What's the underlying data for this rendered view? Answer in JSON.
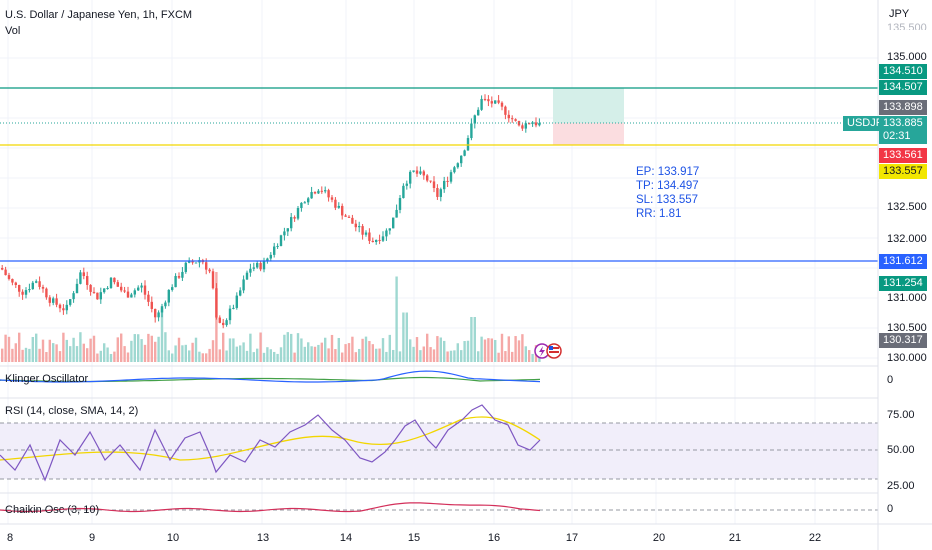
{
  "header": {
    "title": "U.S. Dollar / Japanese Yen, 1h, FXCM",
    "volume_label": "Vol"
  },
  "price_axis": {
    "currency": "JPY",
    "ticks": [
      "135.000",
      "132.500",
      "132.000",
      "131.000",
      "130.500",
      "130.000"
    ],
    "top_partial_tick": "135.500"
  },
  "trade_info": {
    "ep": "EP: 133.917",
    "tp": "TP: 134.497",
    "sl": "SL: 133.557",
    "rr": "RR: 1.81"
  },
  "price_tags": {
    "tp_high": "134.510",
    "tp_line": "134.507",
    "last_gray": "133.898",
    "symbol": "USDJPY",
    "current": "133.885",
    "countdown": "02:31",
    "red": "133.561",
    "sl": "133.557",
    "blue": "131.612",
    "green_low": "131.254",
    "low_gray": "130.317"
  },
  "indicators": {
    "klinger": {
      "label": "Klinger Oscillator",
      "tick": "0"
    },
    "rsi": {
      "label": "RSI (14, close, SMA, 14, 2)",
      "ticks": [
        "75.00",
        "50.00",
        "25.00"
      ]
    },
    "chaikin": {
      "label": "Chaikin Osc (3, 10)",
      "tick": "0"
    }
  },
  "time_axis": {
    "labels": [
      "8",
      "9",
      "10",
      "13",
      "14",
      "15",
      "16",
      "17",
      "20",
      "21",
      "22"
    ]
  },
  "colors": {
    "up": "#26a69a",
    "down": "#ef5350",
    "vol_up": "#9fd8d1",
    "vol_down": "#f5a8a6",
    "tp_line": "#089981",
    "sl_line": "#f2d600",
    "support_line": "#2962ff",
    "rsi_line": "#7e57c2",
    "rsi_ma": "#f2d600",
    "rsi_band": "#f1eefa",
    "klinger_main": "#2962ff",
    "klinger_signal": "#43a047",
    "chaikin": "#d32f5a"
  },
  "chart_data": {
    "type": "candlestick",
    "symbol": "USDJPY",
    "interval": "1h",
    "y_range": [
      130.0,
      135.5
    ],
    "levels": {
      "entry": 133.917,
      "take_profit": 134.497,
      "stop_loss": 133.557,
      "horizontal_line_1": 134.507,
      "horizontal_line_2": 131.612
    },
    "price_path": [
      {
        "x": 0,
        "p": 131.5
      },
      {
        "x": 10,
        "p": 131.25
      },
      {
        "x": 22,
        "p": 131.1
      },
      {
        "x": 35,
        "p": 131.3
      },
      {
        "x": 50,
        "p": 130.95
      },
      {
        "x": 65,
        "p": 130.8
      },
      {
        "x": 80,
        "p": 131.45
      },
      {
        "x": 95,
        "p": 131.0
      },
      {
        "x": 110,
        "p": 131.3
      },
      {
        "x": 125,
        "p": 131.05
      },
      {
        "x": 140,
        "p": 131.2
      },
      {
        "x": 155,
        "p": 130.65
      },
      {
        "x": 170,
        "p": 131.2
      },
      {
        "x": 185,
        "p": 131.55
      },
      {
        "x": 200,
        "p": 131.65
      },
      {
        "x": 210,
        "p": 131.4
      },
      {
        "x": 216,
        "p": 130.5
      },
      {
        "x": 225,
        "p": 130.65
      },
      {
        "x": 235,
        "p": 130.95
      },
      {
        "x": 248,
        "p": 131.5
      },
      {
        "x": 262,
        "p": 131.55
      },
      {
        "x": 275,
        "p": 131.9
      },
      {
        "x": 290,
        "p": 132.3
      },
      {
        "x": 305,
        "p": 132.7
      },
      {
        "x": 318,
        "p": 132.85
      },
      {
        "x": 332,
        "p": 132.6
      },
      {
        "x": 348,
        "p": 132.3
      },
      {
        "x": 360,
        "p": 132.1
      },
      {
        "x": 372,
        "p": 131.95
      },
      {
        "x": 385,
        "p": 132.1
      },
      {
        "x": 393,
        "p": 132.35
      },
      {
        "x": 402,
        "p": 132.9
      },
      {
        "x": 412,
        "p": 133.1
      },
      {
        "x": 425,
        "p": 133.0
      },
      {
        "x": 436,
        "p": 132.7
      },
      {
        "x": 448,
        "p": 133.05
      },
      {
        "x": 462,
        "p": 133.45
      },
      {
        "x": 473,
        "p": 134.0
      },
      {
        "x": 480,
        "p": 134.3
      },
      {
        "x": 492,
        "p": 134.25
      },
      {
        "x": 505,
        "p": 134.1
      },
      {
        "x": 518,
        "p": 133.85
      },
      {
        "x": 530,
        "p": 133.95
      },
      {
        "x": 540,
        "p": 133.88
      }
    ],
    "volume_spikes": [
      {
        "x": 160,
        "v": 0.6
      },
      {
        "x": 214,
        "v": 1.0
      },
      {
        "x": 395,
        "v": 0.95
      },
      {
        "x": 472,
        "v": 0.5
      },
      {
        "x": 404,
        "v": 0.55
      }
    ]
  }
}
